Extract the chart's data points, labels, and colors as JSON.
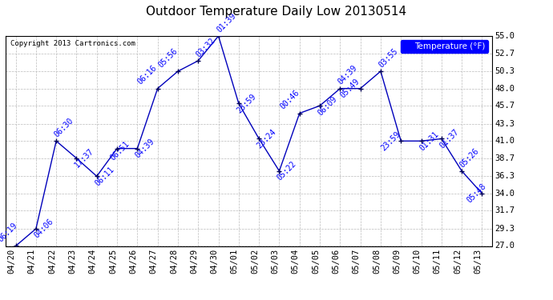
{
  "title": "Outdoor Temperature Daily Low 20130514",
  "copyright": "Copyright 2013 Cartronics.com",
  "legend_label": "Temperature (°F)",
  "background_color": "#ffffff",
  "plot_bg_color": "#ffffff",
  "line_color": "#0000bb",
  "marker_color": "#000055",
  "grid_color": "#bbbbbb",
  "x_labels": [
    "04/20",
    "04/21",
    "04/22",
    "04/23",
    "04/24",
    "04/25",
    "04/26",
    "04/27",
    "04/28",
    "04/29",
    "04/30",
    "05/01",
    "05/02",
    "05/03",
    "05/04",
    "05/05",
    "05/06",
    "05/07",
    "05/08",
    "05/09",
    "05/10",
    "05/11",
    "05/12",
    "05/13"
  ],
  "y_values": [
    27.0,
    29.3,
    41.0,
    38.7,
    36.3,
    40.0,
    40.0,
    48.0,
    50.3,
    51.7,
    55.0,
    46.0,
    41.3,
    37.0,
    44.7,
    45.7,
    48.0,
    48.0,
    50.3,
    41.0,
    41.0,
    41.3,
    37.0,
    34.0
  ],
  "point_labels": [
    "06:19",
    "04:06",
    "06:30",
    "17:37",
    "06:11",
    "06:51",
    "04:39",
    "06:16",
    "05:56",
    "03:32",
    "01:39",
    "23:59",
    "23:24",
    "05:22",
    "00:46",
    "06:09",
    "04:39",
    "05:49",
    "03:55",
    "23:59",
    "01:31",
    "01:37",
    "05:26",
    "05:48"
  ],
  "yticks": [
    27.0,
    29.3,
    31.7,
    34.0,
    36.3,
    38.7,
    41.0,
    43.3,
    45.7,
    48.0,
    50.3,
    52.7,
    55.0
  ],
  "ylim": [
    27.0,
    55.0
  ],
  "title_fontsize": 11,
  "label_fontsize": 7,
  "tick_fontsize": 7.5,
  "legend_fontsize": 7.5
}
